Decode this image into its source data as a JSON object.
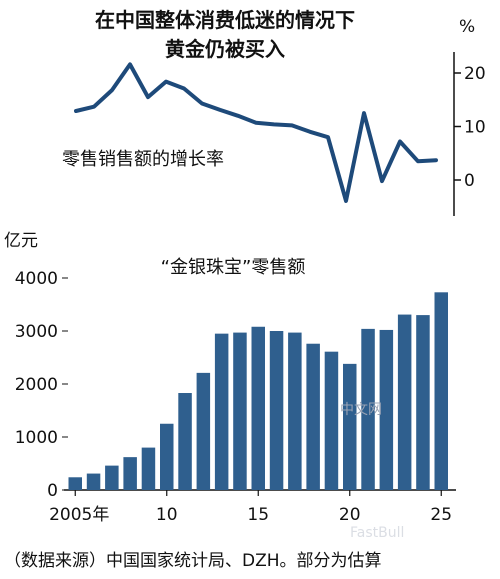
{
  "title_line1": "在中国整体消费低迷的情况下",
  "title_line2": "黄金仍被买入",
  "source": "（数据来源）中国国家统计局、DZH。部分为估算",
  "watermark": "中文网",
  "watermark2": "FastBull",
  "colors": {
    "bar": "#2f5f8e",
    "line": "#1e4a7a",
    "axis": "#111111"
  },
  "chart_data": [
    {
      "type": "line",
      "label": "零售销售额的增长率",
      "unit": "%",
      "y_ticks": [
        "20",
        "10",
        "0"
      ],
      "ylim": [
        -7,
        24
      ],
      "x": [
        2005,
        2006,
        2007,
        2008,
        2009,
        2010,
        2011,
        2012,
        2013,
        2014,
        2015,
        2016,
        2017,
        2018,
        2019,
        2020,
        2021,
        2022,
        2023,
        2024,
        2025
      ],
      "values": [
        12.9,
        13.7,
        16.8,
        21.6,
        15.5,
        18.4,
        17.1,
        14.3,
        13.1,
        12.0,
        10.7,
        10.4,
        10.2,
        9.0,
        8.0,
        -3.9,
        12.5,
        -0.2,
        7.2,
        3.5,
        3.7
      ]
    },
    {
      "type": "bar",
      "title": "“金银珠宝”零售额",
      "unit": "亿元",
      "y_ticks": [
        "4000",
        "3000",
        "2000",
        "1000",
        "0"
      ],
      "x_ticks": [
        "2005年",
        "10",
        "15",
        "20",
        "25"
      ],
      "ylim": [
        0,
        4200
      ],
      "x": [
        2005,
        2006,
        2007,
        2008,
        2009,
        2010,
        2011,
        2012,
        2013,
        2014,
        2015,
        2016,
        2017,
        2018,
        2019,
        2020,
        2021,
        2022,
        2023,
        2024,
        2025
      ],
      "values": [
        240,
        310,
        460,
        620,
        800,
        1250,
        1830,
        2210,
        2950,
        2970,
        3080,
        3000,
        2970,
        2760,
        2610,
        2380,
        3040,
        3020,
        3310,
        3300,
        3730
      ]
    }
  ]
}
